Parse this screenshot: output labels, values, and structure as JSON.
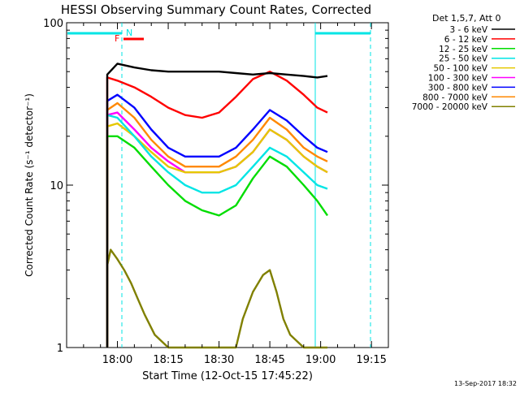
{
  "chart_data": {
    "type": "line",
    "title": "HESSI Observing Summary Count Rates, Corrected",
    "xlabel": "Start Time (12-Oct-15 17:45:22)",
    "ylabel": "Corrected Count Rate (s⁻¹ detector⁻¹)",
    "y_scale": "log",
    "ylim": [
      1,
      100
    ],
    "xlim_minutes_after_17_45": [
      0,
      95
    ],
    "x_ticks": [
      {
        "label": "18:00",
        "minutes": 15
      },
      {
        "label": "18:15",
        "minutes": 30
      },
      {
        "label": "18:30",
        "minutes": 45
      },
      {
        "label": "18:45",
        "minutes": 60
      },
      {
        "label": "19:00",
        "minutes": 75
      },
      {
        "label": "19:15",
        "minutes": 90
      }
    ],
    "y_ticks": [
      {
        "label": "1",
        "value": 1
      },
      {
        "label": "10",
        "value": 10
      },
      {
        "label": "100",
        "value": 100
      }
    ],
    "legend_title": "Det 1,5,7, Att 0",
    "legend_placement": "right",
    "annotations": [
      {
        "text": "F",
        "color": "#ff0000"
      },
      {
        "text": "N",
        "color": "#00e5e5"
      }
    ],
    "series": [
      {
        "name": "3 - 6 keV",
        "color": "#000000",
        "x": [
          12,
          15,
          20,
          25,
          30,
          35,
          40,
          45,
          50,
          55,
          60,
          65,
          70,
          74,
          77
        ],
        "y": [
          48,
          56,
          53,
          51,
          50,
          50,
          50,
          50,
          49,
          48,
          49,
          48,
          47,
          46,
          47
        ]
      },
      {
        "name": "6 - 12 keV",
        "color": "#ff0000",
        "x": [
          12,
          15,
          20,
          25,
          30,
          35,
          40,
          45,
          50,
          55,
          60,
          65,
          70,
          74,
          77
        ],
        "y": [
          46,
          44,
          40,
          35,
          30,
          27,
          26,
          28,
          35,
          45,
          50,
          44,
          36,
          30,
          28
        ]
      },
      {
        "name": "12 - 25 keV",
        "color": "#00dd00",
        "x": [
          12,
          15,
          20,
          25,
          30,
          35,
          40,
          45,
          50,
          55,
          60,
          65,
          70,
          74,
          77
        ],
        "y": [
          20,
          20,
          17,
          13,
          10,
          8,
          7,
          6.5,
          7.5,
          11,
          15,
          13,
          10,
          8,
          6.5
        ]
      },
      {
        "name": "25 - 50 keV",
        "color": "#00e5e5",
        "x": [
          12,
          15,
          20,
          25,
          30,
          35,
          40,
          45,
          50,
          55,
          60,
          65,
          70,
          74,
          77
        ],
        "y": [
          27,
          26,
          20,
          15,
          12,
          10,
          9,
          9,
          10,
          13,
          17,
          15,
          12,
          10,
          9.5
        ]
      },
      {
        "name": "50 - 100 keV",
        "color": "#e5c800",
        "x": [
          12,
          15,
          20,
          25,
          30,
          35,
          40,
          45,
          50,
          55,
          60,
          65,
          70,
          74,
          77
        ],
        "y": [
          23,
          24,
          20,
          16,
          13,
          12,
          12,
          12,
          13,
          16,
          22,
          19,
          15,
          13,
          12
        ]
      },
      {
        "name": "100 - 300 keV",
        "color": "#ff00ff",
        "x": [
          12,
          15,
          20,
          25,
          30,
          35,
          40,
          45,
          50,
          55,
          60,
          65,
          70,
          74,
          77
        ],
        "y": [
          27,
          28,
          22,
          17,
          14,
          12,
          12,
          12,
          13,
          16,
          22,
          19,
          15,
          13,
          12
        ]
      },
      {
        "name": "300 - 800 keV",
        "color": "#0000ff",
        "x": [
          12,
          15,
          20,
          25,
          30,
          35,
          40,
          45,
          50,
          55,
          60,
          65,
          70,
          74,
          77
        ],
        "y": [
          33,
          36,
          30,
          22,
          17,
          15,
          15,
          15,
          17,
          22,
          29,
          25,
          20,
          17,
          16
        ]
      },
      {
        "name": "800 - 7000 keV",
        "color": "#ff8800",
        "x": [
          12,
          15,
          20,
          25,
          30,
          35,
          40,
          45,
          50,
          55,
          60,
          65,
          70,
          74,
          77
        ],
        "y": [
          29,
          32,
          26,
          19,
          15,
          13,
          13,
          13,
          15,
          19,
          26,
          22,
          17,
          15,
          14
        ]
      },
      {
        "name": "7000 - 20000 keV",
        "color": "#808000",
        "x": [
          12,
          13,
          15,
          17,
          19,
          21,
          23,
          26,
          30,
          35,
          40,
          45,
          50,
          52,
          55,
          58,
          60,
          62,
          64,
          66,
          70,
          74,
          77
        ],
        "y": [
          3.2,
          4,
          3.5,
          3,
          2.5,
          2,
          1.6,
          1.2,
          1,
          1,
          1,
          1,
          1,
          1.5,
          2.2,
          2.8,
          3,
          2.2,
          1.5,
          1.2,
          1,
          1,
          1
        ]
      }
    ],
    "grid": false
  },
  "footer_timestamp": "13-Sep-2017 18:32"
}
